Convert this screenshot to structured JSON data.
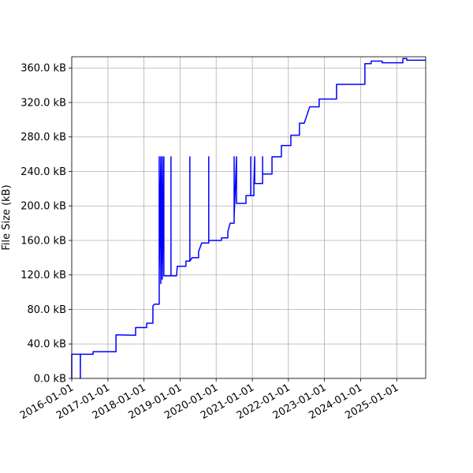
{
  "chart_data": {
    "type": "line",
    "ylabel": "File Size (kB)",
    "x": [
      "2016-01-01",
      "2016-01-01",
      "2016-03-28",
      "2016-03-28",
      "2016-03-29",
      "2016-08-04",
      "2016-08-04",
      "2017-03-24",
      "2017-03-24",
      "2017-10-08",
      "2017-10-08",
      "2018-01-28",
      "2018-01-28",
      "2018-04-01",
      "2018-04-01",
      "2018-04-17",
      "2018-06-04",
      "2018-06-04",
      "2018-06-04",
      "2018-06-20",
      "2018-06-20",
      "2018-07-05",
      "2018-07-05",
      "2018-07-21",
      "2018-07-21",
      "2018-10-01",
      "2018-10-01",
      "2018-10-01",
      "2018-11-26",
      "2018-12-04",
      "2019-03-01",
      "2019-03-01",
      "2019-04-10",
      "2019-04-10",
      "2019-04-10",
      "2019-05-04",
      "2019-07-07",
      "2019-07-07",
      "2019-08-08",
      "2019-10-18",
      "2019-10-18",
      "2019-10-18",
      "2020-02-24",
      "2020-02-24",
      "2020-04-28",
      "2020-04-28",
      "2020-05-22",
      "2020-07-01",
      "2020-07-01",
      "2020-07-01",
      "2020-07-25",
      "2020-07-25",
      "2020-10-29",
      "2020-10-29",
      "2020-12-16",
      "2020-12-16",
      "2020-12-16",
      "2021-01-17",
      "2021-01-17",
      "2021-01-25",
      "2021-01-25",
      "2021-04-15",
      "2021-04-15",
      "2021-04-15",
      "2021-07-19",
      "2021-07-19",
      "2021-10-22",
      "2021-10-22",
      "2022-01-26",
      "2022-01-26",
      "2022-04-23",
      "2022-04-23",
      "2022-06-10",
      "2022-08-05",
      "2022-11-08",
      "2022-11-08",
      "2023-05-03",
      "2023-05-03",
      "2024-02-14",
      "2024-02-14",
      "2024-04-17",
      "2024-04-17",
      "2024-08-07",
      "2024-08-07",
      "2025-03-04",
      "2025-03-04",
      "2025-04-13",
      "2025-04-13",
      "2025-10-21"
    ],
    "series": [
      {
        "name": "File Size",
        "color": "#0000ff",
        "values": [
          0,
          28,
          28,
          0,
          28,
          28,
          31,
          31,
          50.5,
          50,
          59,
          59,
          64,
          64,
          84,
          86,
          86,
          257,
          120,
          257,
          110,
          257,
          115,
          257,
          119,
          119,
          257,
          119,
          119,
          130,
          130,
          136,
          136,
          257,
          136,
          140,
          140,
          147,
          157,
          157,
          257,
          160,
          160,
          163,
          163,
          170,
          180,
          180,
          257,
          187,
          257,
          203,
          203,
          212,
          212,
          257,
          212,
          212,
          226,
          257,
          226,
          226,
          257,
          237,
          237,
          257,
          257,
          270,
          270,
          282,
          282,
          296,
          296,
          315,
          315,
          324,
          324,
          341,
          341,
          365,
          365,
          368,
          368,
          366,
          366,
          371,
          371,
          369,
          369
        ]
      }
    ],
    "xlim": [
      "2016-01-01",
      "2025-10-21"
    ],
    "xticks": [
      "2016-01-01",
      "2017-01-01",
      "2018-01-01",
      "2019-01-01",
      "2020-01-01",
      "2021-01-01",
      "2022-01-01",
      "2023-01-01",
      "2024-01-01",
      "2025-01-01"
    ],
    "ylim": [
      0,
      373
    ],
    "yticks": [
      {
        "value": 0,
        "label": "0.0 kB"
      },
      {
        "value": 40,
        "label": "40.0 kB"
      },
      {
        "value": 80,
        "label": "80.0 kB"
      },
      {
        "value": 120,
        "label": "120.0 kB"
      },
      {
        "value": 160,
        "label": "160.0 kB"
      },
      {
        "value": 200,
        "label": "200.0 kB"
      },
      {
        "value": 240,
        "label": "240.0 kB"
      },
      {
        "value": 280,
        "label": "280.0 kB"
      },
      {
        "value": 320,
        "label": "320.0 kB"
      },
      {
        "value": 360,
        "label": "360.0 kB"
      }
    ],
    "grid": true
  }
}
